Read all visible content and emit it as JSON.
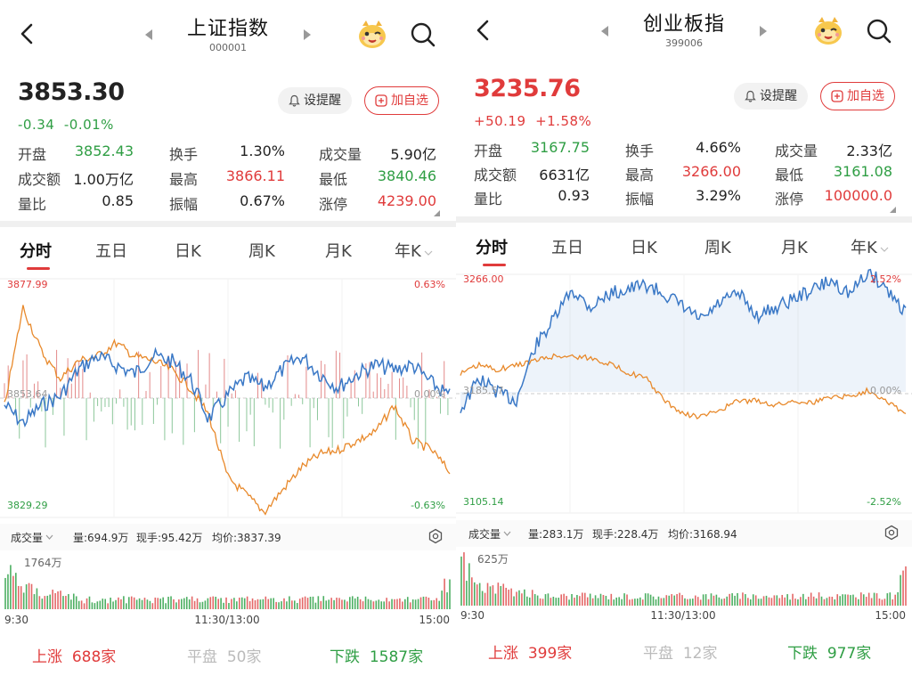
{
  "panels": [
    {
      "title": "上证指数",
      "code": "000001",
      "price": "3853.30",
      "price_color": "#2f9e44",
      "change": "-0.34",
      "change_pct": "-0.01%",
      "remind_label": "设提醒",
      "add_label": "加自选",
      "stats": [
        {
          "label": "开盘",
          "value": "3852.43",
          "color": "#2f9e44"
        },
        {
          "label": "换手",
          "value": "1.30%",
          "color": "#222"
        },
        {
          "label": "成交量",
          "value": "5.90亿",
          "color": "#222"
        },
        {
          "label": "成交额",
          "value": "1.00万亿",
          "color": "#222"
        },
        {
          "label": "最高",
          "value": "3866.11",
          "color": "#e03b3b"
        },
        {
          "label": "最低",
          "value": "3840.46",
          "color": "#2f9e44"
        },
        {
          "label": "量比",
          "value": "0.85",
          "color": "#222"
        },
        {
          "label": "振幅",
          "value": "0.67%",
          "color": "#222"
        },
        {
          "label": "涨停",
          "value": "4239.00",
          "color": "#e03b3b"
        }
      ],
      "tabs": [
        "分时",
        "五日",
        "日K",
        "周K",
        "月K",
        "年K"
      ],
      "chart": {
        "y_high": "3877.99",
        "y_mid": "3853.64",
        "y_low": "3829.29",
        "pct_high": "0.63%",
        "pct_mid": "0.00%",
        "pct_low": "-0.63%"
      },
      "volume": {
        "selector": "成交量",
        "amount": "量:694.9万",
        "current": "现手:95.42万",
        "avg": "均价:3837.39",
        "max_label": "1764万"
      },
      "times": [
        "9:30",
        "11:30/13:00",
        "15:00"
      ],
      "breadth": {
        "up_label": "上涨",
        "up_count": "688家",
        "flat_label": "平盘",
        "flat_count": "50家",
        "down_label": "下跌",
        "down_count": "1587家"
      }
    },
    {
      "title": "创业板指",
      "code": "399006",
      "price": "3235.76",
      "price_color": "#e03b3b",
      "change": "+50.19",
      "change_pct": "+1.58%",
      "remind_label": "设提醒",
      "add_label": "加自选",
      "stats": [
        {
          "label": "开盘",
          "value": "3167.75",
          "color": "#2f9e44"
        },
        {
          "label": "换手",
          "value": "4.66%",
          "color": "#222"
        },
        {
          "label": "成交量",
          "value": "2.33亿",
          "color": "#222"
        },
        {
          "label": "成交额",
          "value": "6631亿",
          "color": "#222"
        },
        {
          "label": "最高",
          "value": "3266.00",
          "color": "#e03b3b"
        },
        {
          "label": "最低",
          "value": "3161.08",
          "color": "#2f9e44"
        },
        {
          "label": "量比",
          "value": "0.93",
          "color": "#222"
        },
        {
          "label": "振幅",
          "value": "3.29%",
          "color": "#222"
        },
        {
          "label": "涨停",
          "value": "100000.0",
          "color": "#e03b3b"
        }
      ],
      "tabs": [
        "分时",
        "五日",
        "日K",
        "周K",
        "月K",
        "年K"
      ],
      "chart": {
        "y_high": "3266.00",
        "y_mid": "3185.57",
        "y_low": "3105.14",
        "pct_high": "2.52%",
        "pct_mid": "0.00%",
        "pct_low": "-2.52%"
      },
      "volume": {
        "selector": "成交量",
        "amount": "量:283.1万",
        "current": "现手:228.4万",
        "avg": "均价:3168.94",
        "max_label": "625万"
      },
      "times": [
        "9:30",
        "11:30/13:00",
        "15:00"
      ],
      "breadth": {
        "up_label": "上涨",
        "up_count": "399家",
        "flat_label": "平盘",
        "flat_count": "12家",
        "down_label": "下跌",
        "down_count": "977家"
      }
    }
  ],
  "colors": {
    "up": "#e03b3b",
    "down": "#2f9e44",
    "price_line": "#3a78c6",
    "avg_line": "#e8892b"
  },
  "icons": [
    "back-arrow-icon",
    "prev-triangle-icon",
    "next-triangle-icon",
    "mascot-icon",
    "search-icon",
    "bell-icon",
    "plus-box-icon",
    "chevron-down-icon",
    "settings-icon"
  ]
}
